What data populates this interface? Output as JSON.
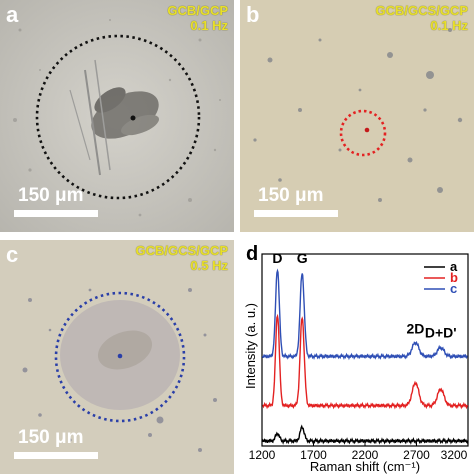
{
  "panels": [
    {
      "label": "a",
      "condition_line1": "GCB/GCP",
      "condition_line2": "0.1 Hz",
      "scalebar": "150 μm"
    },
    {
      "label": "b",
      "condition_line1": "GCB/GCS/GCP",
      "condition_line2": "0.1 Hz",
      "scalebar": "150 μm"
    },
    {
      "label": "c",
      "condition_line1": "GCB/GCS/GCP",
      "condition_line2": "0.5 Hz",
      "scalebar": "150 μm"
    }
  ],
  "colors": {
    "panel_a_circle": "#111111",
    "panel_b_circle": "#e32222",
    "panel_c_circle": "#2a3fa8",
    "series_a": "#000000",
    "series_b": "#e32222",
    "series_c": "#2f4fb5"
  },
  "chart_data": {
    "type": "line",
    "panel_label": "d",
    "xlabel": "Raman shift (cm⁻¹)",
    "ylabel": "Intensity (a. u.)",
    "xlim": [
      1200,
      3200
    ],
    "xticks": [
      1200,
      1700,
      2200,
      2700,
      3200
    ],
    "xtick_labels": [
      "1200",
      "1700",
      "2200",
      "2700",
      "3200"
    ],
    "annotations": [
      {
        "text": "D",
        "x": 1350
      },
      {
        "text": "G",
        "x": 1590
      },
      {
        "text": "2D",
        "x": 2690
      },
      {
        "text": "D+D'",
        "x": 2935
      }
    ],
    "legend": {
      "placement": "top-right",
      "entries": [
        "a",
        "b",
        "c"
      ]
    },
    "peak_positions": [
      1350,
      1590,
      2690,
      2935
    ],
    "series": [
      {
        "name": "a",
        "baseline": 0.2,
        "peaks": [
          0.3,
          0.55,
          0.0,
          0.0
        ]
      },
      {
        "name": "b",
        "baseline": 1.6,
        "peaks": [
          3.6,
          3.5,
          0.9,
          0.65
        ]
      },
      {
        "name": "c",
        "baseline": 3.55,
        "peaks": [
          3.45,
          3.3,
          0.55,
          0.35
        ]
      }
    ],
    "ylim": [
      0,
      7.6
    ]
  }
}
